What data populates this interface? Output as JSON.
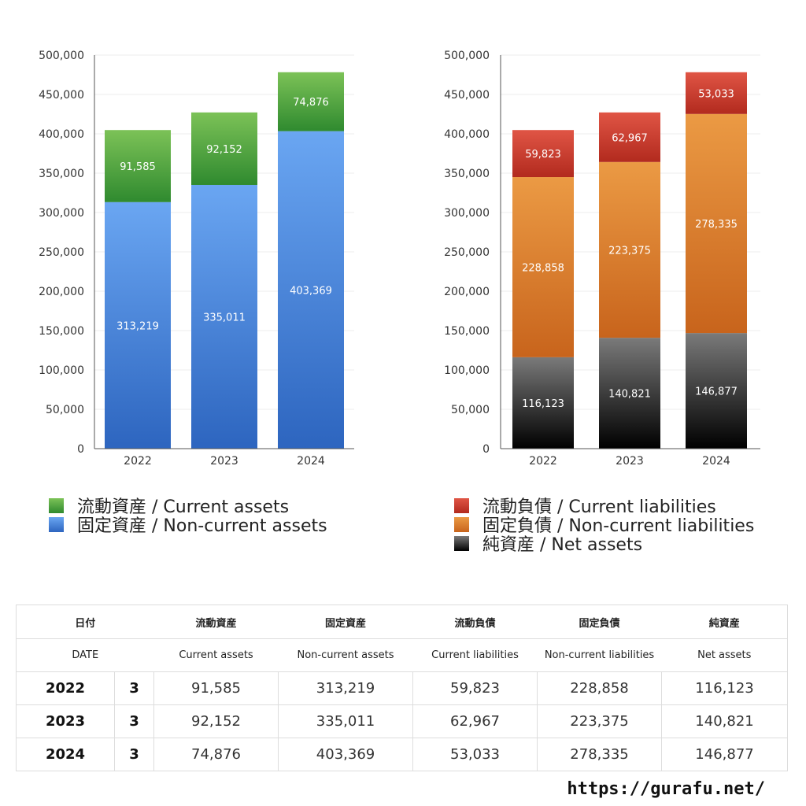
{
  "chart_data": [
    {
      "type": "bar",
      "stacked": true,
      "categories": [
        "2022",
        "2023",
        "2024"
      ],
      "ylim": [
        0,
        500000
      ],
      "yticks": [
        "0",
        "50,000",
        "100,000",
        "150,000",
        "200,000",
        "250,000",
        "300,000",
        "350,000",
        "400,000",
        "450,000",
        "500,000"
      ],
      "grid": true,
      "series": [
        {
          "name": "固定資産 / Non-current assets",
          "values": [
            313219,
            335011,
            403369
          ],
          "labels": [
            "313,219",
            "335,011",
            "403,369"
          ],
          "color_top": "#6aa6f2",
          "color_bottom": "#2d65bf"
        },
        {
          "name": "流動資産 / Current assets",
          "values": [
            91585,
            92152,
            74876
          ],
          "labels": [
            "91,585",
            "92,152",
            "74,876"
          ],
          "color_top": "#7cc257",
          "color_bottom": "#2f8a2f"
        }
      ]
    },
    {
      "type": "bar",
      "stacked": true,
      "categories": [
        "2022",
        "2023",
        "2024"
      ],
      "ylim": [
        0,
        500000
      ],
      "yticks": [
        "0",
        "50,000",
        "100,000",
        "150,000",
        "200,000",
        "250,000",
        "300,000",
        "350,000",
        "400,000",
        "450,000",
        "500,000"
      ],
      "grid": true,
      "series": [
        {
          "name": "純資産 / Net assets",
          "values": [
            116123,
            140821,
            146877
          ],
          "labels": [
            "116,123",
            "140,821",
            "146,877"
          ],
          "color_top": "#7a7a7a",
          "color_bottom": "#000000"
        },
        {
          "name": "固定負債 / Non-current liabilities",
          "values": [
            228858,
            223375,
            278335
          ],
          "labels": [
            "228,858",
            "223,375",
            "278,335"
          ],
          "color_top": "#eb9a44",
          "color_bottom": "#c8641c"
        },
        {
          "name": "流動負債 / Current liabilities",
          "values": [
            59823,
            62967,
            53033
          ],
          "labels": [
            "59,823",
            "62,967",
            "53,033"
          ],
          "color_top": "#e05545",
          "color_bottom": "#b22a1e"
        }
      ]
    }
  ],
  "legend_left": [
    {
      "label": "流動資産 / Current assets",
      "color_top": "#7cc257",
      "color_bottom": "#2f8a2f"
    },
    {
      "label": "固定資産 / Non-current assets",
      "color_top": "#6aa6f2",
      "color_bottom": "#2d65bf"
    }
  ],
  "legend_right": [
    {
      "label": "流動負債 / Current liabilities",
      "color_top": "#e05545",
      "color_bottom": "#b22a1e"
    },
    {
      "label": "固定負債 / Non-current liabilities",
      "color_top": "#eb9a44",
      "color_bottom": "#c8641c"
    },
    {
      "label": "純資産 / Net assets",
      "color_top": "#7a7a7a",
      "color_bottom": "#000000"
    }
  ],
  "table": {
    "header_jp": [
      "日付",
      "流動資産",
      "固定資産",
      "流動負債",
      "固定負債",
      "純資産"
    ],
    "header_en": [
      "DATE",
      "Current assets",
      "Non-current assets",
      "Current liabilities",
      "Non-current liabilities",
      "Net assets"
    ],
    "rows": [
      {
        "year": "2022",
        "month": "3",
        "cells": [
          "91,585",
          "313,219",
          "59,823",
          "228,858",
          "116,123"
        ]
      },
      {
        "year": "2023",
        "month": "3",
        "cells": [
          "92,152",
          "335,011",
          "62,967",
          "223,375",
          "140,821"
        ]
      },
      {
        "year": "2024",
        "month": "3",
        "cells": [
          "74,876",
          "403,369",
          "53,033",
          "278,335",
          "146,877"
        ]
      }
    ]
  },
  "site_url": "https://gurafu.net/"
}
